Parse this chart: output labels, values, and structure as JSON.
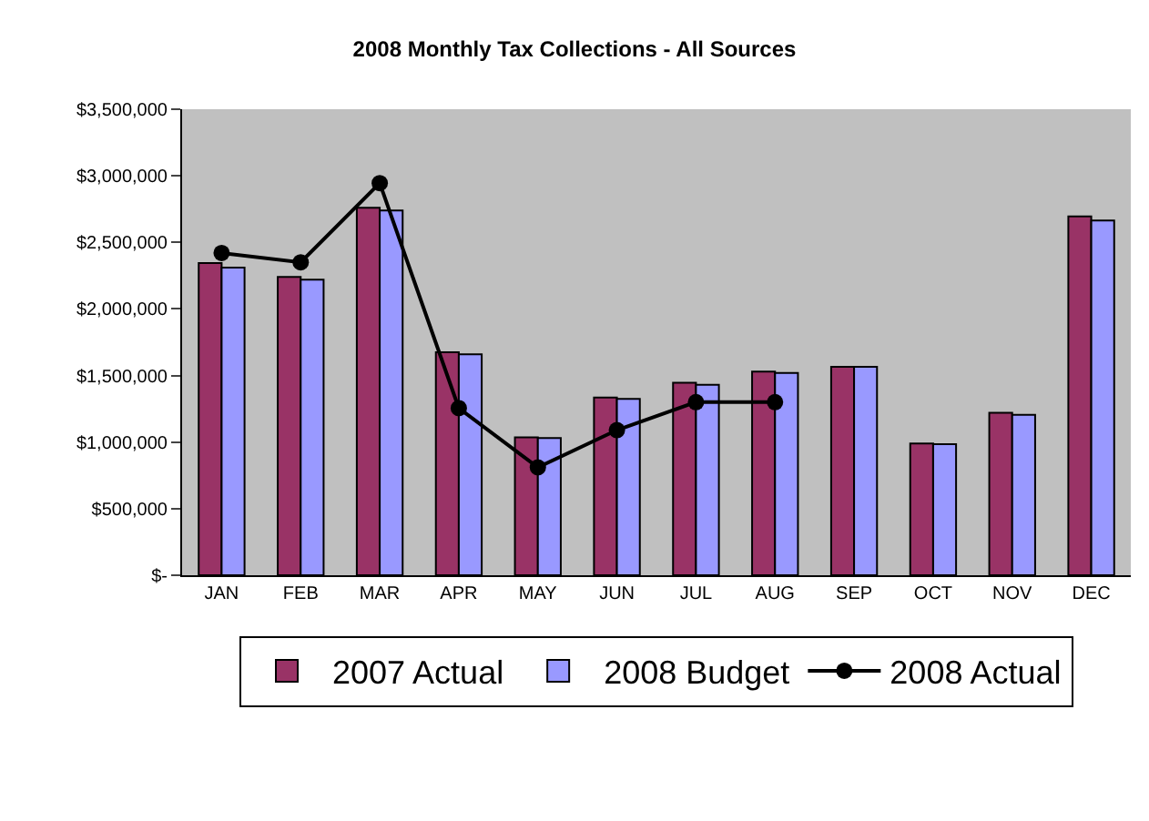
{
  "chart_data": {
    "type": "bar",
    "title": "2008 Monthly Tax Collections - All Sources",
    "categories": [
      "JAN",
      "FEB",
      "MAR",
      "APR",
      "MAY",
      "JUN",
      "JUL",
      "AUG",
      "SEP",
      "OCT",
      "NOV",
      "DEC"
    ],
    "series": [
      {
        "name": "2007 Actual",
        "color": "#993366",
        "values": [
          2345000,
          2240000,
          2760000,
          1675000,
          1035000,
          1335000,
          1445000,
          1530000,
          1565000,
          990000,
          1220000,
          2695000
        ]
      },
      {
        "name": "2008 Budget",
        "color": "#9999ff",
        "values": [
          2310000,
          2220000,
          2740000,
          1660000,
          1030000,
          1325000,
          1430000,
          1520000,
          1565000,
          985000,
          1205000,
          2665000
        ]
      },
      {
        "name": "2008 Actual",
        "type": "line",
        "color": "#000000",
        "marker": "circle",
        "values": [
          2420000,
          2350000,
          2945000,
          1255000,
          810000,
          1090000,
          1300000,
          1300000,
          null,
          null,
          null,
          null
        ]
      }
    ],
    "ylim": [
      0,
      3500000
    ],
    "yticks": [
      {
        "value": 0,
        "label": "$-"
      },
      {
        "value": 500000,
        "label": "$500,000"
      },
      {
        "value": 1000000,
        "label": "$1,000,000"
      },
      {
        "value": 1500000,
        "label": "$1,500,000"
      },
      {
        "value": 2000000,
        "label": "$2,000,000"
      },
      {
        "value": 2500000,
        "label": "$2,500,000"
      },
      {
        "value": 3000000,
        "label": "$3,000,000"
      },
      {
        "value": 3500000,
        "label": "$3,500,000"
      }
    ],
    "grid": false,
    "legend": "bottom"
  }
}
